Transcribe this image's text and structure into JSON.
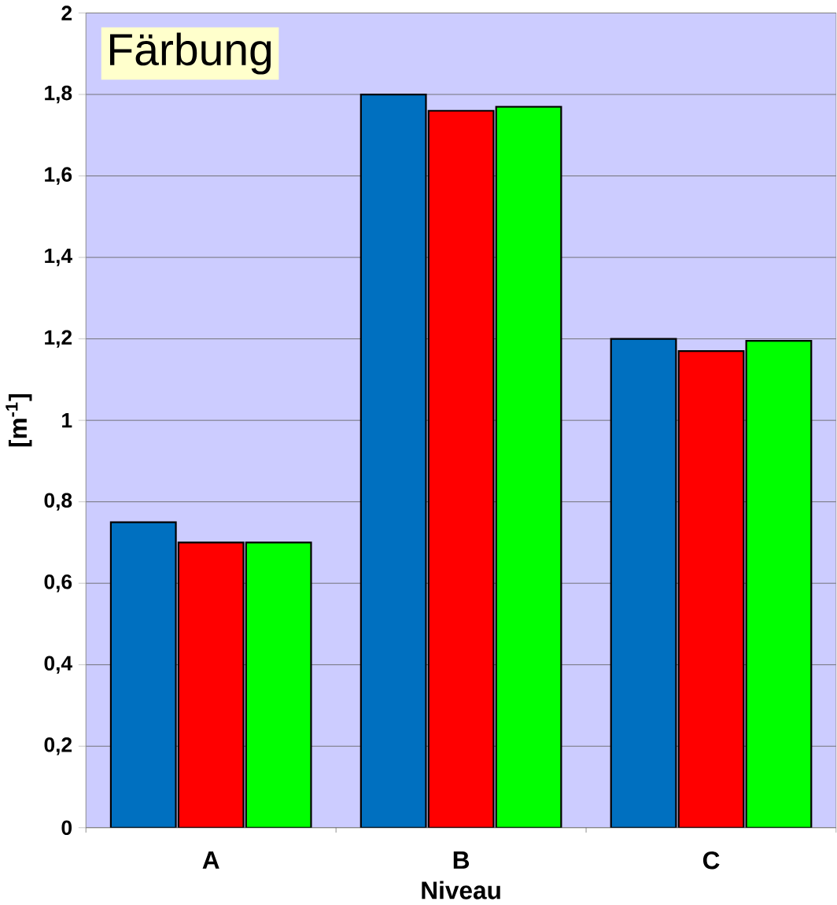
{
  "chart_data": {
    "type": "bar",
    "title": "Färbung",
    "xlabel": "Niveau",
    "ylabel": "[m$^{-1}$]",
    "categories": [
      "A",
      "B",
      "C"
    ],
    "series": [
      {
        "color": "#0070c0",
        "values": [
          0.75,
          1.8,
          1.2
        ]
      },
      {
        "color": "#ff0000",
        "values": [
          0.7,
          1.76,
          1.17
        ]
      },
      {
        "color": "#00ff00",
        "values": [
          0.7,
          1.77,
          1.195
        ]
      }
    ],
    "ylim": [
      0,
      2
    ],
    "yticks": [
      0,
      {
        "value": 0.2,
        "label": "0,2"
      },
      {
        "value": 0.4,
        "label": "0,4"
      },
      {
        "value": 0.6,
        "label": "0,6"
      },
      {
        "value": 0.8,
        "label": "0,8"
      },
      1,
      {
        "value": 1.2,
        "label": "1,2"
      },
      {
        "value": 1.4,
        "label": "1,4"
      },
      {
        "value": 1.6,
        "label": "1,6"
      },
      {
        "value": 1.8,
        "label": "1,8"
      },
      2
    ],
    "grid": "y"
  }
}
